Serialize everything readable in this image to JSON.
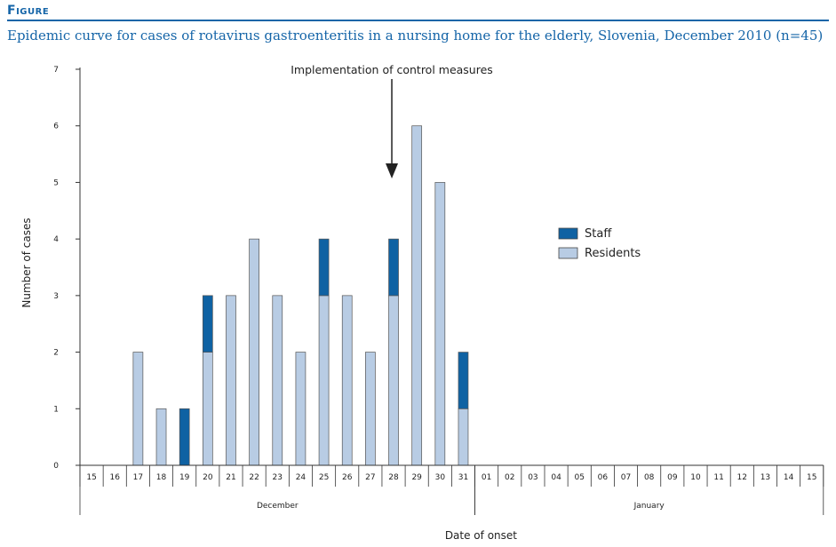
{
  "figure": {
    "label": "Figure",
    "title": "Epidemic curve for cases of rotavirus gastroenteritis in a nursing home for the elderly, Slovenia, December 2010 (n=45)"
  },
  "colors": {
    "staff": "#0f62a3",
    "residents": "#b8cce4",
    "accent": "#1565a8"
  },
  "chart_data": {
    "type": "bar",
    "stacked": true,
    "title": "Epidemic curve for cases of rotavirus gastroenteritis in a nursing home for the elderly, Slovenia, December 2010 (n=45)",
    "xlabel": "Date of onset",
    "ylabel": "Number of cases",
    "ylim": [
      0,
      7
    ],
    "yticks": [
      "0",
      "1",
      "2",
      "3",
      "4",
      "5",
      "6",
      "7"
    ],
    "categories": [
      "15",
      "16",
      "17",
      "18",
      "19",
      "20",
      "21",
      "22",
      "23",
      "24",
      "25",
      "26",
      "27",
      "28",
      "29",
      "30",
      "31",
      "01",
      "02",
      "03",
      "04",
      "05",
      "06",
      "07",
      "08",
      "09",
      "10",
      "11",
      "12",
      "13",
      "14",
      "15"
    ],
    "month_groups": [
      {
        "label": "December",
        "start": 0,
        "end": 16
      },
      {
        "label": "January",
        "start": 17,
        "end": 31
      }
    ],
    "series": [
      {
        "name": "Residents",
        "color": "#b8cce4",
        "values": [
          0,
          0,
          2,
          1,
          0,
          2,
          3,
          4,
          3,
          2,
          3,
          3,
          2,
          3,
          6,
          5,
          1,
          0,
          0,
          0,
          0,
          0,
          0,
          0,
          0,
          0,
          0,
          0,
          0,
          0,
          0,
          0
        ]
      },
      {
        "name": "Staff",
        "color": "#0f62a3",
        "values": [
          0,
          0,
          0,
          0,
          1,
          1,
          0,
          0,
          0,
          0,
          1,
          0,
          0,
          1,
          0,
          0,
          1,
          0,
          0,
          0,
          0,
          0,
          0,
          0,
          0,
          0,
          0,
          0,
          0,
          0,
          0,
          0
        ]
      }
    ],
    "legend": {
      "placement": "right",
      "entries": [
        "Staff",
        "Residents"
      ]
    },
    "annotations": [
      {
        "text": "Implementation  of control measures",
        "category_index": 13
      }
    ],
    "grid": false
  }
}
